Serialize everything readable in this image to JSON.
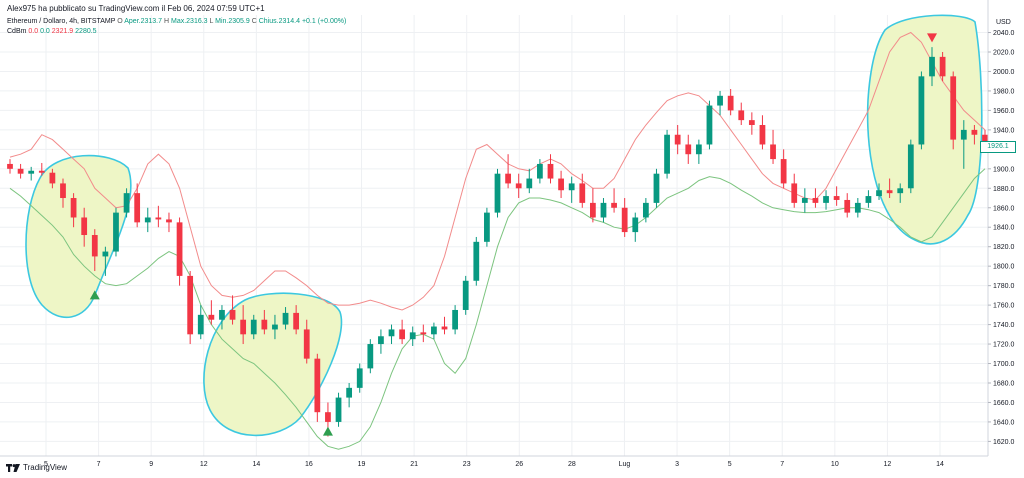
{
  "header": {
    "author_line": "Alex975 ha pubblicato su TradingView.com il Feb 06, 2024 07:59 UTC+1",
    "symbol": "Ethereum / Dollaro, 4h, BITSTAMP",
    "o_label": "O",
    "open": "Aper.2313.7",
    "high": "H",
    "high_val": "Max.2316.3",
    "low": "L",
    "low_val": "Min.2305.9",
    "close": "C",
    "close_val": "Chius.2314.4",
    "change": "+0.1 (+0.00%)",
    "indicator_name": "CdBm",
    "ind_v1": "0.0",
    "ind_v2": "0.0",
    "ind_upper": "2321.9",
    "ind_lower": "2280.5"
  },
  "price_axis": {
    "currency": "USD",
    "last_price": "1926.1",
    "ticks": [
      "2040.0",
      "2020.0",
      "2000.0",
      "1980.0",
      "1960.0",
      "1940.0",
      "1920.0",
      "1900.0",
      "1880.0",
      "1860.0",
      "1840.0",
      "1820.0",
      "1800.0",
      "1780.0",
      "1760.0",
      "1740.0",
      "1720.0",
      "1700.0",
      "1680.0",
      "1660.0",
      "1640.0",
      "1620.0"
    ]
  },
  "time_axis": {
    "labels": [
      "5",
      "7",
      "9",
      "12",
      "14",
      "16",
      "19",
      "21",
      "23",
      "26",
      "28",
      "Lug",
      "3",
      "5",
      "7",
      "10",
      "12",
      "14"
    ]
  },
  "brand": {
    "name": "TradingView"
  },
  "colors": {
    "up": "#089981",
    "down": "#f23645",
    "upper_band": "#f28b8b",
    "lower_band": "#7cc47f",
    "highlight_fill": "#eef6c6",
    "highlight_stroke": "#3cc8e0",
    "grid": "#eef0f3"
  },
  "chart_data": {
    "type": "candlestick",
    "ylim": [
      1605,
      2058
    ],
    "candles": [
      [
        1905,
        1910,
        1895,
        1900
      ],
      [
        1900,
        1905,
        1890,
        1895
      ],
      [
        1895,
        1902,
        1888,
        1898
      ],
      [
        1898,
        1906,
        1893,
        1896
      ],
      [
        1896,
        1900,
        1880,
        1885
      ],
      [
        1885,
        1890,
        1860,
        1870
      ],
      [
        1870,
        1875,
        1840,
        1850
      ],
      [
        1850,
        1860,
        1820,
        1832
      ],
      [
        1832,
        1838,
        1795,
        1810
      ],
      [
        1810,
        1820,
        1790,
        1815
      ],
      [
        1815,
        1860,
        1810,
        1855
      ],
      [
        1855,
        1880,
        1850,
        1875
      ],
      [
        1875,
        1885,
        1840,
        1845
      ],
      [
        1845,
        1860,
        1835,
        1850
      ],
      [
        1850,
        1862,
        1840,
        1848
      ],
      [
        1848,
        1855,
        1835,
        1845
      ],
      [
        1845,
        1850,
        1780,
        1790
      ],
      [
        1790,
        1795,
        1720,
        1730
      ],
      [
        1730,
        1760,
        1725,
        1750
      ],
      [
        1750,
        1765,
        1740,
        1745
      ],
      [
        1745,
        1760,
        1735,
        1755
      ],
      [
        1755,
        1770,
        1740,
        1745
      ],
      [
        1745,
        1760,
        1720,
        1730
      ],
      [
        1730,
        1750,
        1725,
        1745
      ],
      [
        1745,
        1755,
        1730,
        1735
      ],
      [
        1735,
        1750,
        1725,
        1740
      ],
      [
        1740,
        1758,
        1735,
        1752
      ],
      [
        1752,
        1760,
        1730,
        1735
      ],
      [
        1735,
        1745,
        1700,
        1705
      ],
      [
        1705,
        1710,
        1640,
        1650
      ],
      [
        1650,
        1660,
        1625,
        1640
      ],
      [
        1640,
        1670,
        1635,
        1665
      ],
      [
        1665,
        1680,
        1655,
        1675
      ],
      [
        1675,
        1700,
        1670,
        1695
      ],
      [
        1695,
        1725,
        1690,
        1720
      ],
      [
        1720,
        1735,
        1710,
        1728
      ],
      [
        1728,
        1740,
        1720,
        1735
      ],
      [
        1735,
        1745,
        1720,
        1725
      ],
      [
        1725,
        1738,
        1718,
        1732
      ],
      [
        1732,
        1740,
        1722,
        1730
      ],
      [
        1730,
        1742,
        1725,
        1738
      ],
      [
        1738,
        1748,
        1730,
        1735
      ],
      [
        1735,
        1760,
        1730,
        1755
      ],
      [
        1755,
        1790,
        1750,
        1785
      ],
      [
        1785,
        1830,
        1780,
        1825
      ],
      [
        1825,
        1860,
        1820,
        1855
      ],
      [
        1855,
        1900,
        1850,
        1895
      ],
      [
        1895,
        1915,
        1880,
        1885
      ],
      [
        1885,
        1895,
        1870,
        1880
      ],
      [
        1880,
        1900,
        1875,
        1890
      ],
      [
        1890,
        1910,
        1885,
        1905
      ],
      [
        1905,
        1915,
        1885,
        1890
      ],
      [
        1890,
        1898,
        1870,
        1878
      ],
      [
        1878,
        1892,
        1865,
        1885
      ],
      [
        1885,
        1895,
        1860,
        1865
      ],
      [
        1865,
        1880,
        1845,
        1850
      ],
      [
        1850,
        1870,
        1845,
        1865
      ],
      [
        1865,
        1880,
        1855,
        1860
      ],
      [
        1860,
        1870,
        1830,
        1835
      ],
      [
        1835,
        1855,
        1825,
        1850
      ],
      [
        1850,
        1870,
        1845,
        1865
      ],
      [
        1865,
        1900,
        1860,
        1895
      ],
      [
        1895,
        1940,
        1890,
        1935
      ],
      [
        1935,
        1945,
        1915,
        1925
      ],
      [
        1925,
        1935,
        1905,
        1915
      ],
      [
        1915,
        1930,
        1905,
        1925
      ],
      [
        1925,
        1970,
        1920,
        1965
      ],
      [
        1965,
        1980,
        1955,
        1975
      ],
      [
        1975,
        1982,
        1955,
        1960
      ],
      [
        1960,
        1968,
        1945,
        1950
      ],
      [
        1950,
        1958,
        1935,
        1945
      ],
      [
        1945,
        1955,
        1920,
        1925
      ],
      [
        1925,
        1940,
        1905,
        1910
      ],
      [
        1910,
        1920,
        1880,
        1885
      ],
      [
        1885,
        1895,
        1860,
        1865
      ],
      [
        1865,
        1880,
        1855,
        1870
      ],
      [
        1870,
        1880,
        1860,
        1865
      ],
      [
        1865,
        1878,
        1858,
        1872
      ],
      [
        1872,
        1882,
        1862,
        1868
      ],
      [
        1868,
        1875,
        1850,
        1855
      ],
      [
        1855,
        1870,
        1850,
        1865
      ],
      [
        1865,
        1878,
        1860,
        1872
      ],
      [
        1872,
        1885,
        1868,
        1878
      ],
      [
        1878,
        1890,
        1870,
        1875
      ],
      [
        1875,
        1885,
        1865,
        1880
      ],
      [
        1880,
        1930,
        1875,
        1925
      ],
      [
        1925,
        2000,
        1920,
        1995
      ],
      [
        1995,
        2025,
        1985,
        2015
      ],
      [
        2015,
        2020,
        1990,
        1995
      ],
      [
        1995,
        2000,
        1920,
        1930
      ],
      [
        1930,
        1950,
        1900,
        1940
      ],
      [
        1940,
        1945,
        1925,
        1935
      ],
      [
        1935,
        1940,
        1920,
        1926
      ]
    ],
    "upper_band": [
      1912,
      1915,
      1920,
      1935,
      1930,
      1920,
      1910,
      1900,
      1880,
      1870,
      1860,
      1862,
      1880,
      1905,
      1915,
      1905,
      1880,
      1840,
      1800,
      1780,
      1770,
      1768,
      1770,
      1775,
      1785,
      1795,
      1795,
      1788,
      1780,
      1770,
      1762,
      1760,
      1760,
      1762,
      1765,
      1762,
      1758,
      1755,
      1760,
      1768,
      1780,
      1810,
      1850,
      1890,
      1920,
      1925,
      1915,
      1905,
      1900,
      1898,
      1905,
      1910,
      1905,
      1895,
      1888,
      1880,
      1880,
      1890,
      1910,
      1930,
      1945,
      1958,
      1970,
      1975,
      1978,
      1975,
      1965,
      1955,
      1940,
      1925,
      1910,
      1895,
      1885,
      1880,
      1875,
      1870,
      1868,
      1880,
      1900,
      1920,
      1940,
      1960,
      1990,
      2020,
      2035,
      2040,
      2030,
      2010,
      1990,
      1975,
      1960,
      1950,
      1940
    ],
    "lower_band": [
      1880,
      1872,
      1862,
      1852,
      1842,
      1830,
      1812,
      1800,
      1790,
      1782,
      1780,
      1782,
      1790,
      1798,
      1808,
      1815,
      1810,
      1790,
      1760,
      1740,
      1725,
      1715,
      1705,
      1700,
      1690,
      1680,
      1668,
      1655,
      1640,
      1625,
      1615,
      1612,
      1615,
      1620,
      1635,
      1660,
      1690,
      1715,
      1728,
      1730,
      1725,
      1700,
      1690,
      1705,
      1740,
      1780,
      1820,
      1850,
      1865,
      1870,
      1870,
      1868,
      1865,
      1860,
      1855,
      1848,
      1845,
      1840,
      1838,
      1842,
      1850,
      1860,
      1870,
      1875,
      1880,
      1888,
      1892,
      1890,
      1885,
      1878,
      1872,
      1865,
      1860,
      1858,
      1856,
      1855,
      1855,
      1856,
      1858,
      1860,
      1860,
      1858,
      1855,
      1848,
      1840,
      1830,
      1825,
      1830,
      1845,
      1860,
      1875,
      1890,
      1900
    ]
  },
  "markers": {
    "buy": [
      {
        "candle": 8,
        "price": 1770
      },
      {
        "candle": 30,
        "price": 1630
      }
    ],
    "sell": [
      {
        "candle": 87,
        "price": 2035
      }
    ]
  }
}
